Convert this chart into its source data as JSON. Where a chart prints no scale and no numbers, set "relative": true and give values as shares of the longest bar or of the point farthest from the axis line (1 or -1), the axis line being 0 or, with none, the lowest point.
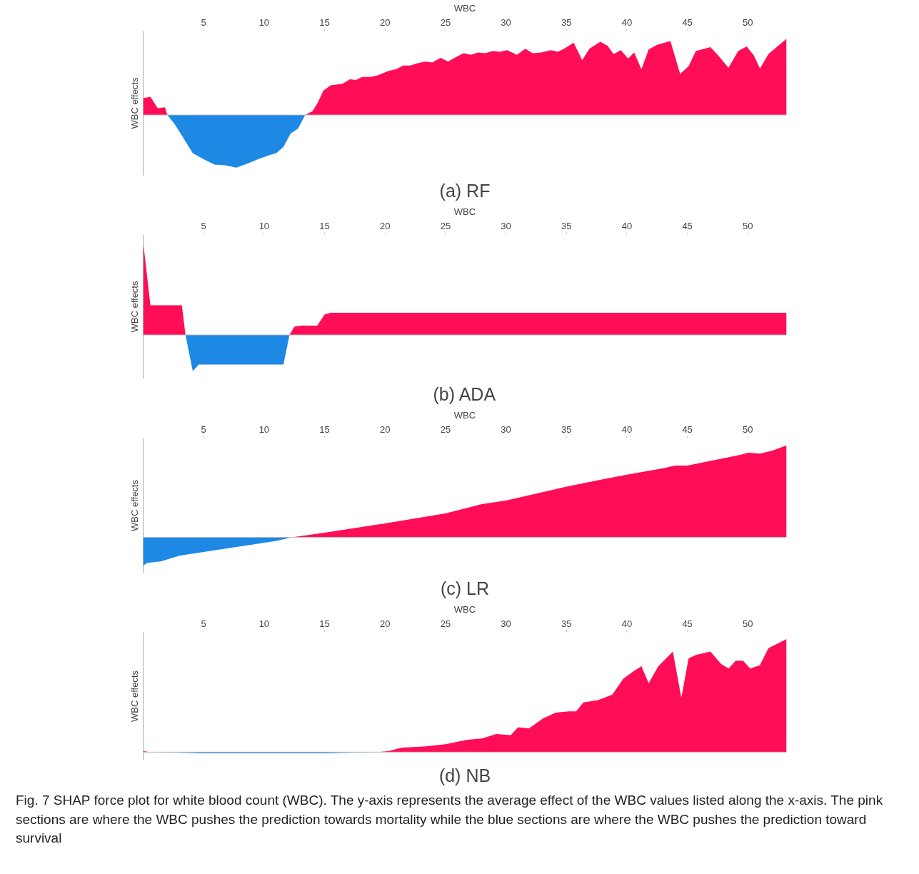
{
  "chart_data": [
    {
      "type": "area",
      "title": "(a) RF",
      "xlabel": "WBC",
      "ylabel": "WBC effects",
      "relative": true,
      "xlim": [
        0,
        53.2
      ],
      "xticks": [
        5,
        10,
        15,
        20,
        25,
        30,
        35,
        40,
        45,
        50
      ],
      "series": [
        {
          "color": "#ff0d57",
          "x": [
            0,
            0.6,
            1.2,
            1.8,
            2.0,
            13.4,
            14,
            14.4,
            14.9,
            15.5,
            16.5,
            17.1,
            17.6,
            18.1,
            18.8,
            19.4,
            20.3,
            20.9,
            21.5,
            22.1,
            22.7,
            23.3,
            23.9,
            24.6,
            25.2,
            26,
            26.5,
            27.1,
            27.7,
            28.3,
            28.9,
            29.5,
            30.1,
            30.9,
            31.6,
            32.2,
            32.9,
            33.7,
            34.3,
            34.9,
            35.6,
            36.3,
            36.9,
            37.8,
            38.4,
            38.9,
            39.5,
            40.1,
            40.6,
            41.2,
            41.8,
            42.5,
            43.6,
            44.4,
            45.1,
            45.7,
            46.9,
            47.5,
            48.4,
            49.2,
            49.9,
            50.5,
            51,
            51.7,
            53.2
          ],
          "values": [
            0.22,
            0.24,
            0.09,
            0.1,
            0,
            0,
            0.05,
            0.15,
            0.32,
            0.39,
            0.41,
            0.47,
            0.46,
            0.5,
            0.5,
            0.52,
            0.58,
            0.6,
            0.65,
            0.65,
            0.68,
            0.7,
            0.69,
            0.75,
            0.7,
            0.77,
            0.81,
            0.79,
            0.82,
            0.81,
            0.84,
            0.83,
            0.85,
            0.79,
            0.87,
            0.81,
            0.82,
            0.85,
            0.83,
            0.88,
            0.95,
            0.72,
            0.87,
            0.96,
            0.91,
            0.8,
            0.85,
            0.74,
            0.82,
            0.6,
            0.86,
            0.92,
            0.97,
            0.54,
            0.64,
            0.84,
            0.89,
            0.79,
            0.62,
            0.84,
            0.9,
            0.78,
            0.61,
            0.8,
            1.0
          ]
        },
        {
          "color": "#1e88e5",
          "x": [
            2.0,
            2.6,
            3.2,
            4.1,
            5,
            5.9,
            6.8,
            7.7,
            8.6,
            9.5,
            10.4,
            11,
            11.6,
            12.2,
            12.8,
            13.4
          ],
          "values": [
            0,
            -0.12,
            -0.27,
            -0.5,
            -0.58,
            -0.65,
            -0.66,
            -0.69,
            -0.64,
            -0.58,
            -0.53,
            -0.5,
            -0.42,
            -0.24,
            -0.18,
            0
          ]
        }
      ]
    },
    {
      "type": "area",
      "title": "(b) ADA",
      "xlabel": "WBC",
      "ylabel": "WBC effects",
      "relative": true,
      "xlim": [
        0,
        53.2
      ],
      "xticks": [
        5,
        10,
        15,
        20,
        25,
        30,
        35,
        40,
        45,
        50
      ],
      "series": [
        {
          "color": "#ff0d57",
          "x": [
            0,
            0.6,
            3.2,
            3.5,
            12.1,
            12.5,
            13.1,
            14.4,
            15,
            15.5,
            53.2
          ],
          "values": [
            1.0,
            0.32,
            0.32,
            0,
            0,
            0.09,
            0.1,
            0.1,
            0.22,
            0.24,
            0.24
          ]
        },
        {
          "color": "#1e88e5",
          "x": [
            3.5,
            4.1,
            4.6,
            11.6,
            12.1
          ],
          "values": [
            0,
            -0.39,
            -0.32,
            -0.32,
            0
          ]
        }
      ]
    },
    {
      "type": "area",
      "title": "(c) LR",
      "xlabel": "WBC",
      "ylabel": "WBC effects",
      "relative": true,
      "xlim": [
        0,
        53.2
      ],
      "xticks": [
        5,
        10,
        15,
        20,
        25,
        30,
        35,
        40,
        45,
        50
      ],
      "series": [
        {
          "color": "#ff0d57",
          "x": [
            12.3,
            15,
            20,
            25,
            28,
            30,
            35,
            38,
            40,
            43,
            44,
            45,
            48,
            49.5,
            50,
            51,
            52,
            53.2
          ],
          "values": [
            0,
            0.05,
            0.15,
            0.26,
            0.36,
            0.4,
            0.55,
            0.63,
            0.68,
            0.75,
            0.78,
            0.78,
            0.86,
            0.9,
            0.92,
            0.91,
            0.94,
            1.0
          ]
        },
        {
          "color": "#1e88e5",
          "x": [
            0,
            0.3,
            1.5,
            3,
            5,
            8,
            11,
            12.3
          ],
          "values": [
            -0.31,
            -0.28,
            -0.26,
            -0.2,
            -0.16,
            -0.1,
            -0.04,
            0
          ]
        }
      ]
    },
    {
      "type": "area",
      "title": "(d) NB",
      "xlabel": "WBC",
      "ylabel": "WBC effects",
      "relative": true,
      "xlim": [
        0,
        53.2
      ],
      "xticks": [
        5,
        10,
        15,
        20,
        25,
        30,
        35,
        40,
        45,
        50
      ],
      "series": [
        {
          "color": "#ff0d57",
          "x": [
            0,
            0.5,
            19.5,
            20.3,
            21.4,
            23.2,
            25,
            26.8,
            28,
            29.2,
            30.4,
            31,
            31.9,
            33.1,
            34.1,
            35.2,
            35.8,
            36.4,
            37.6,
            38.8,
            39.7,
            40.6,
            41.2,
            41.8,
            42.6,
            43.8,
            44.5,
            45.1,
            45.7,
            46.9,
            47.8,
            48.4,
            49,
            49.6,
            50.2,
            51,
            51.7,
            53.2
          ],
          "values": [
            0.01,
            0,
            0,
            0.01,
            0.04,
            0.05,
            0.07,
            0.11,
            0.12,
            0.16,
            0.15,
            0.22,
            0.21,
            0.3,
            0.35,
            0.36,
            0.36,
            0.44,
            0.46,
            0.51,
            0.65,
            0.72,
            0.76,
            0.61,
            0.76,
            0.89,
            0.48,
            0.83,
            0.86,
            0.89,
            0.78,
            0.74,
            0.81,
            0.81,
            0.74,
            0.77,
            0.92,
            1.0
          ]
        },
        {
          "color": "#1e88e5",
          "x": [
            0.5,
            5,
            10,
            15,
            19.5
          ],
          "values": [
            0,
            -0.01,
            -0.01,
            -0.01,
            0
          ]
        }
      ],
      "annotations": [
        "Fig. 7 SHAP force plot for white blood count (WBC). The y-axis represents the average effect of the WBC values listed along the x-axis. The pink sections are where the WBC pushes the prediction towards mortality while the blue sections are where the WBC pushes the prediction toward survival"
      ]
    }
  ]
}
